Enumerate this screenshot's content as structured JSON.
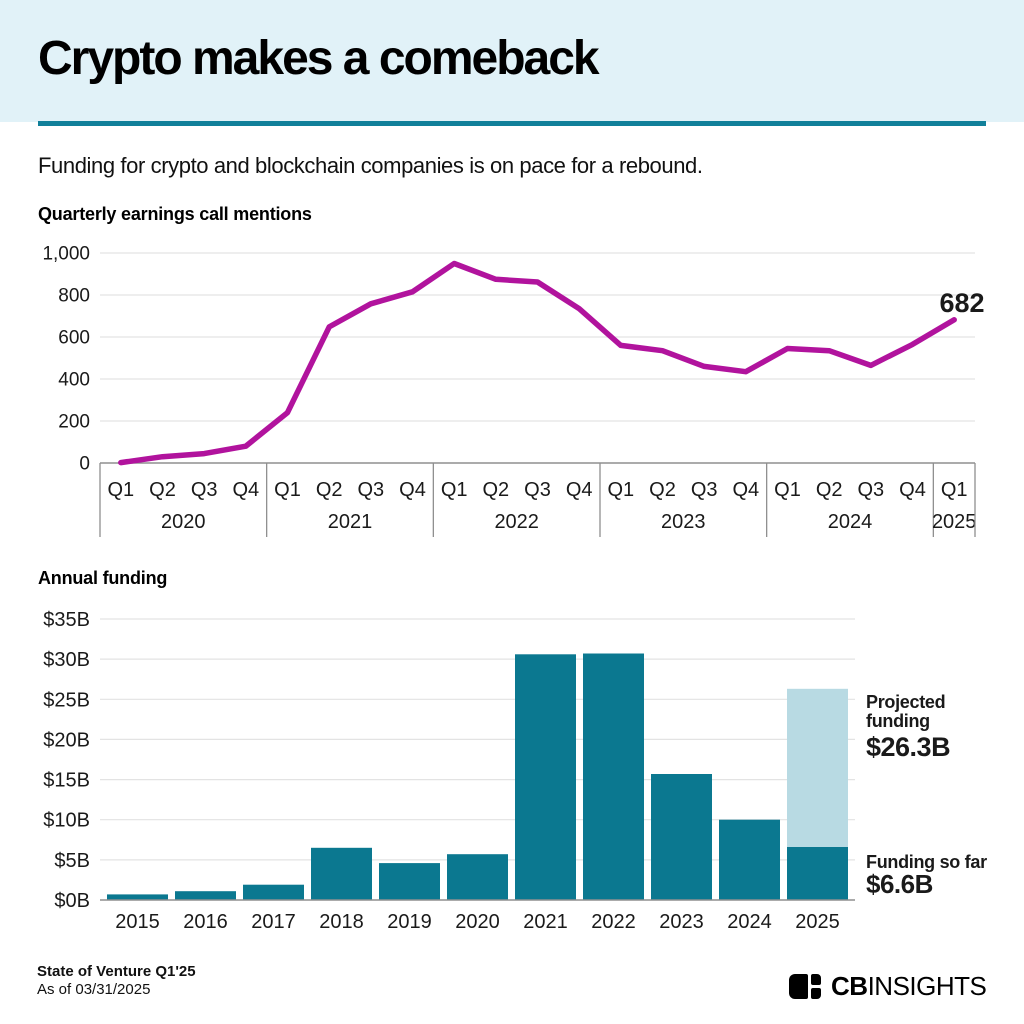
{
  "header": {
    "title": "Crypto makes a comeback",
    "subtitle": "Funding for crypto and blockchain companies is on pace for a rebound."
  },
  "colors": {
    "header_bg": "#e1f2f8",
    "divider_teal": "#11809a",
    "line_magenta": "#b1139d",
    "bar_teal": "#0b7890",
    "bar_projected_light": "#b8dae3",
    "projected_text": "#6fa9bc",
    "funding_so_far_text": "#0a7689",
    "gridline": "#e3e3e3",
    "axis_gray": "#8f8f8f"
  },
  "chart_data": [
    {
      "type": "line",
      "title": "Quarterly earnings call mentions",
      "x_groups": [
        {
          "year": "2020",
          "quarters": [
            "Q1",
            "Q2",
            "Q3",
            "Q4"
          ]
        },
        {
          "year": "2021",
          "quarters": [
            "Q1",
            "Q2",
            "Q3",
            "Q4"
          ]
        },
        {
          "year": "2022",
          "quarters": [
            "Q1",
            "Q2",
            "Q3",
            "Q4"
          ]
        },
        {
          "year": "2023",
          "quarters": [
            "Q1",
            "Q2",
            "Q3",
            "Q4"
          ]
        },
        {
          "year": "2024",
          "quarters": [
            "Q1",
            "Q2",
            "Q3",
            "Q4"
          ]
        },
        {
          "year": "2025",
          "quarters": [
            "Q1"
          ]
        }
      ],
      "series": [
        {
          "name": "Earnings call mentions",
          "values": [
            2,
            30,
            45,
            80,
            240,
            648,
            758,
            815,
            950,
            875,
            862,
            735,
            560,
            535,
            460,
            435,
            545,
            535,
            465,
            565,
            682
          ]
        }
      ],
      "ylim": [
        0,
        1000
      ],
      "yticks": [
        {
          "v": 0,
          "label": "0"
        },
        {
          "v": 200,
          "label": "200"
        },
        {
          "v": 400,
          "label": "400"
        },
        {
          "v": 600,
          "label": "600"
        },
        {
          "v": 800,
          "label": "800"
        },
        {
          "v": 1000,
          "label": "1,000"
        }
      ],
      "end_point_label": "682",
      "grid": true,
      "legend": "none"
    },
    {
      "type": "bar",
      "title": "Annual funding",
      "categories": [
        "2015",
        "2016",
        "2017",
        "2018",
        "2019",
        "2020",
        "2021",
        "2022",
        "2023",
        "2024",
        "2025"
      ],
      "values": [
        0.7,
        1.1,
        1.9,
        6.5,
        4.6,
        5.7,
        30.6,
        30.7,
        15.7,
        10.0,
        6.6
      ],
      "ylabel_unit": "$B",
      "ylim": [
        0,
        35
      ],
      "yticks": [
        {
          "v": 0,
          "label": "$0B"
        },
        {
          "v": 5,
          "label": "$5B"
        },
        {
          "v": 10,
          "label": "$10B"
        },
        {
          "v": 15,
          "label": "$15B"
        },
        {
          "v": 20,
          "label": "$20B"
        },
        {
          "v": 25,
          "label": "$25B"
        },
        {
          "v": 30,
          "label": "$30B"
        },
        {
          "v": 35,
          "label": "$35B"
        }
      ],
      "projected": {
        "year": "2025",
        "total": 26.3,
        "label_line1": "Projected",
        "label_line2": "funding",
        "value_label": "$26.3B"
      },
      "funding_so_far": {
        "year": "2025",
        "value": 6.6,
        "label": "Funding so far",
        "value_label": "$6.6B"
      },
      "grid": true,
      "legend": "none"
    }
  ],
  "footer": {
    "source_line1": "State of Venture Q1'25",
    "source_line2": "As of 03/31/2025",
    "logo_cb": "CB",
    "logo_insights": "INSIGHTS"
  }
}
